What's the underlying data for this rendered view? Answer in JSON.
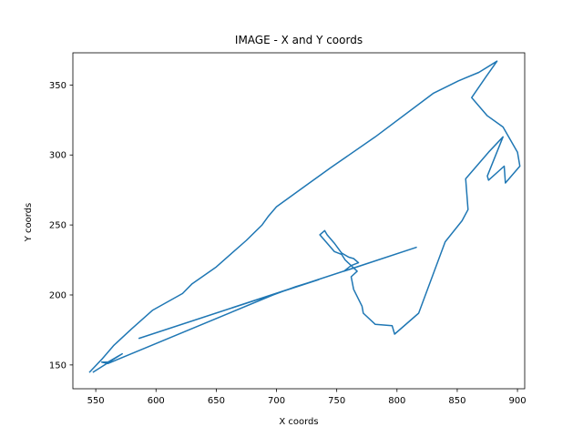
{
  "chart_data": {
    "type": "line",
    "title": "IMAGE - X and Y coords",
    "xlabel": "X coords",
    "ylabel": "Y coords",
    "xlim": [
      531,
      906
    ],
    "ylim": [
      133,
      373
    ],
    "xticks": [
      550,
      600,
      650,
      700,
      750,
      800,
      850,
      900
    ],
    "yticks": [
      150,
      200,
      250,
      300,
      350
    ],
    "grid": false,
    "color": "#1f77b4",
    "series": [
      {
        "x": [
          545,
          555,
          565,
          580,
          597,
          622,
          630,
          650,
          675,
          688,
          693,
          700,
          724,
          745,
          782,
          830,
          851,
          868,
          883,
          874,
          862,
          875,
          888,
          892,
          900,
          902,
          890,
          889,
          876,
          875,
          888,
          876,
          857,
          859,
          854,
          840,
          818,
          798,
          796,
          782,
          772,
          771,
          764,
          762,
          767,
          757,
          754,
          748,
          743,
          736,
          740,
          742,
          748,
          754,
          760,
          764,
          768,
          762,
          756,
          816,
          586,
          735,
          716,
          697,
          560,
          555,
          560,
          572,
          548
        ],
        "y": [
          145,
          154,
          164,
          176,
          189,
          201,
          208,
          220,
          239,
          250,
          256,
          263,
          278,
          291,
          313,
          344,
          353,
          359,
          367,
          356,
          341,
          328,
          320,
          314,
          302,
          292,
          280,
          292,
          282,
          285,
          313,
          302,
          283,
          261,
          253,
          238,
          187,
          172,
          178,
          179,
          187,
          192,
          204,
          213,
          217,
          225,
          229,
          231,
          236,
          243,
          246,
          243,
          237,
          230,
          227,
          226,
          223,
          221,
          217,
          234,
          169,
          211,
          206,
          200,
          151,
          152,
          152,
          158,
          145
        ]
      }
    ]
  }
}
